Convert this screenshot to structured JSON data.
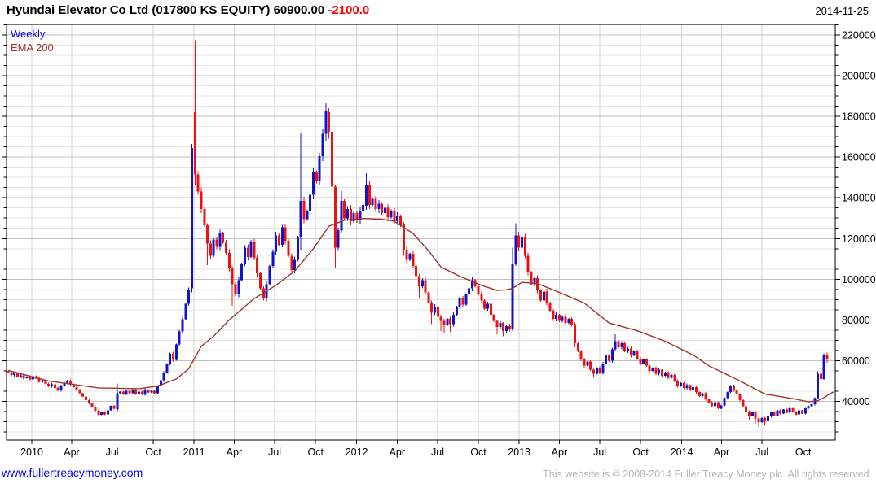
{
  "header": {
    "title": "Hyundai Elevator Co Ltd (017800 KS EQUITY)",
    "last_price": "60900.00",
    "change": "-2100.0",
    "date": "2014-11-25"
  },
  "legend": {
    "series_label": "Weekly",
    "overlay_label": "EMA 200"
  },
  "footer": {
    "link": "www.fullertreacymoney.com",
    "copyright": "This website is © 2008-2014 Fuller Treacy Money plc. All rights reserved."
  },
  "chart_data": {
    "type": "candlestick",
    "timeframe": "weekly",
    "first_week": "2009-11-09",
    "ylim": [
      21000,
      225200
    ],
    "grid": {
      "y_major_interval": 20000,
      "y_minor_interval": 5000
    },
    "y_ticks": [
      220000,
      200000,
      180000,
      160000,
      140000,
      120000,
      100000,
      80000,
      60000,
      40000
    ],
    "x_ticks": [
      {
        "label": "2010",
        "week": 7.6
      },
      {
        "label": "Apr",
        "week": 20.4
      },
      {
        "label": "Jul",
        "week": 33.4
      },
      {
        "label": "Oct",
        "week": 46.6
      },
      {
        "label": "2011",
        "week": 59.7
      },
      {
        "label": "Apr",
        "week": 72.6
      },
      {
        "label": "Jul",
        "week": 85.6
      },
      {
        "label": "Oct",
        "week": 98.7
      },
      {
        "label": "2012",
        "week": 111.9
      },
      {
        "label": "Apr",
        "week": 124.9
      },
      {
        "label": "Jul",
        "week": 137.9
      },
      {
        "label": "Oct",
        "week": 151.0
      },
      {
        "label": "2013",
        "week": 164.1
      },
      {
        "label": "Apr",
        "week": 177.0
      },
      {
        "label": "Jul",
        "week": 190.0
      },
      {
        "label": "Oct",
        "week": 203.1
      },
      {
        "label": "2014",
        "week": 216.3
      },
      {
        "label": "Apr",
        "week": 229.1
      },
      {
        "label": "Jul",
        "week": 242.1
      },
      {
        "label": "Oct",
        "week": 255.3
      }
    ],
    "first_open": 54800,
    "wick_fraction": 0.012,
    "weekly_closes": [
      54000,
      53000,
      53800,
      52200,
      52800,
      51400,
      52000,
      50800,
      52400,
      51200,
      49600,
      50400,
      48600,
      47400,
      48400,
      46600,
      45400,
      47400,
      49200,
      50000,
      48400,
      47000,
      45600,
      44000,
      42400,
      40600,
      39000,
      37400,
      35400,
      33400,
      34800,
      33600,
      35600,
      37800,
      36400,
      44000,
      44800,
      43600,
      45200,
      44000,
      45600,
      43800,
      44800,
      43400,
      45800,
      44400,
      45200,
      44000,
      47400,
      50400,
      54000,
      58400,
      63400,
      60400,
      68000,
      74400,
      80400,
      88000,
      95000,
      164500,
      151500,
      143000,
      134500,
      126500,
      117500,
      111500,
      119500,
      116000,
      122500,
      118000,
      113000,
      105500,
      97500,
      92500,
      99500,
      107500,
      115500,
      111000,
      118500,
      110500,
      103000,
      95500,
      90500,
      97500,
      106500,
      113500,
      121500,
      117000,
      125500,
      119000,
      111500,
      104500,
      109500,
      120500,
      138500,
      129500,
      133500,
      141500,
      152500,
      148000,
      160500,
      171500,
      182500,
      172500,
      145500,
      115500,
      124000,
      138500,
      130000,
      134500,
      128500,
      132500,
      129000,
      133500,
      136500,
      146000,
      136500,
      139500,
      134500,
      137000,
      132500,
      135000,
      130500,
      133500,
      128500,
      131000,
      126500,
      114500,
      109500,
      112500,
      106500,
      101500,
      96500,
      99500,
      93500,
      88500,
      83500,
      86500,
      81500,
      79500,
      77500,
      80500,
      78000,
      82500,
      86500,
      90500,
      87500,
      92500,
      95500,
      99500,
      96500,
      93000,
      89500,
      85500,
      88000,
      82500,
      79500,
      76500,
      78500,
      74500,
      77000,
      75500,
      107500,
      121500,
      115500,
      121000,
      111500,
      103500,
      97500,
      100500,
      94500,
      89500,
      94000,
      88500,
      84500,
      80500,
      82500,
      79500,
      81500,
      78500,
      80500,
      77500,
      68500,
      64500,
      60500,
      57500,
      59500,
      55500,
      53500,
      56500,
      54000,
      58500,
      62500,
      60000,
      65500,
      69500,
      66500,
      68500,
      64500,
      66000,
      62500,
      64500,
      61000,
      58500,
      60500,
      57500,
      55000,
      56500,
      53500,
      55500,
      52500,
      54000,
      51500,
      53000,
      50000,
      47500,
      49000,
      46500,
      48000,
      45500,
      47000,
      44500,
      42500,
      44000,
      41000,
      39500,
      37500,
      39500,
      36500,
      38000,
      41500,
      44500,
      47500,
      45500,
      43500,
      40500,
      37500,
      35000,
      33000,
      34500,
      31500,
      29800,
      31800,
      30200,
      32500,
      34500,
      33000,
      35500,
      34000,
      36000,
      34500,
      36500,
      35000,
      33500,
      35500,
      34000,
      36500,
      37500,
      38500,
      41500,
      53500,
      51000,
      63000,
      60900
    ],
    "special_ohlc": {
      "35": [
        36000,
        48800,
        34800,
        44000
      ],
      "59": [
        95500,
        166500,
        93500,
        164500
      ],
      "60": [
        182000,
        217500,
        146000,
        151500
      ],
      "64": [
        126500,
        127500,
        107000,
        117500
      ],
      "72": [
        105500,
        106500,
        87000,
        97500
      ],
      "94": [
        120500,
        172000,
        114500,
        138500
      ],
      "102": [
        171500,
        186500,
        168000,
        182500
      ],
      "103": [
        182000,
        184000,
        169000,
        172500
      ],
      "104": [
        172500,
        174000,
        140000,
        145500
      ],
      "105": [
        145500,
        146500,
        105500,
        115500
      ],
      "107": [
        124000,
        143500,
        123000,
        138500
      ],
      "115": [
        136000,
        152000,
        134000,
        146000
      ],
      "127": [
        127000,
        128000,
        111500,
        114500
      ],
      "132": [
        101500,
        102500,
        91000,
        96500
      ],
      "136": [
        88500,
        89500,
        78000,
        83500
      ],
      "139": [
        81500,
        82500,
        74500,
        79500
      ],
      "140": [
        79500,
        80500,
        73500,
        77500
      ],
      "142": [
        80500,
        81500,
        74000,
        78000
      ],
      "157": [
        79500,
        80000,
        73000,
        76500
      ],
      "159": [
        78500,
        79000,
        72000,
        74500
      ],
      "162": [
        75500,
        115500,
        74500,
        107500
      ],
      "163": [
        107500,
        127500,
        106500,
        121500
      ],
      "165": [
        115500,
        126500,
        114500,
        121000
      ],
      "172": [
        89500,
        99000,
        89000,
        94000
      ],
      "182": [
        78000,
        79000,
        66500,
        68500
      ],
      "188": [
        55500,
        56000,
        51500,
        53500
      ],
      "195": [
        65500,
        73000,
        64500,
        69500
      ],
      "238": [
        35000,
        35500,
        31000,
        33000
      ],
      "240": [
        34500,
        35000,
        29000,
        31500
      ],
      "241": [
        31500,
        32000,
        27600,
        29800
      ],
      "243": [
        31800,
        32300,
        28000,
        30200
      ],
      "260": [
        41500,
        54800,
        41000,
        53500
      ],
      "261": [
        53500,
        55000,
        50000,
        51000
      ],
      "262": [
        51000,
        63500,
        50500,
        63000
      ],
      "263": [
        63000,
        63900,
        58900,
        60900
      ]
    },
    "ema_200_points": [
      [
        0,
        55200
      ],
      [
        13,
        50000
      ],
      [
        29,
        46600
      ],
      [
        42,
        46200
      ],
      [
        48,
        47500
      ],
      [
        54,
        51000
      ],
      [
        58,
        56000
      ],
      [
        62,
        67000
      ],
      [
        66,
        72000
      ],
      [
        71,
        80000
      ],
      [
        79,
        90500
      ],
      [
        86,
        97000
      ],
      [
        92,
        104000
      ],
      [
        98,
        115000
      ],
      [
        103,
        126000
      ],
      [
        108,
        129000
      ],
      [
        114,
        129800
      ],
      [
        120,
        129500
      ],
      [
        124,
        128500
      ],
      [
        130,
        122500
      ],
      [
        135,
        114000
      ],
      [
        139,
        106000
      ],
      [
        145,
        101500
      ],
      [
        152,
        97000
      ],
      [
        157,
        94500
      ],
      [
        160,
        94800
      ],
      [
        162,
        95500
      ],
      [
        165,
        98500
      ],
      [
        170,
        97800
      ],
      [
        175,
        94800
      ],
      [
        185,
        88300
      ],
      [
        193,
        78500
      ],
      [
        202,
        74700
      ],
      [
        211,
        69500
      ],
      [
        220,
        62700
      ],
      [
        225,
        57500
      ],
      [
        235,
        50000
      ],
      [
        243,
        43600
      ],
      [
        252,
        41300
      ],
      [
        257,
        39800
      ],
      [
        260,
        40300
      ],
      [
        262,
        41800
      ],
      [
        263,
        42800
      ],
      [
        265,
        44600
      ]
    ],
    "colors": {
      "up": "#1212cc",
      "down": "#ee1111",
      "ema": "#a03530",
      "grid_minor": "#e4e4e4",
      "grid_major": "#c0c0c0",
      "grid_vertical": "#d2d2d2",
      "axis": "#000000",
      "change_text": "#ff0000",
      "weekly_label": "#0000ee"
    }
  }
}
